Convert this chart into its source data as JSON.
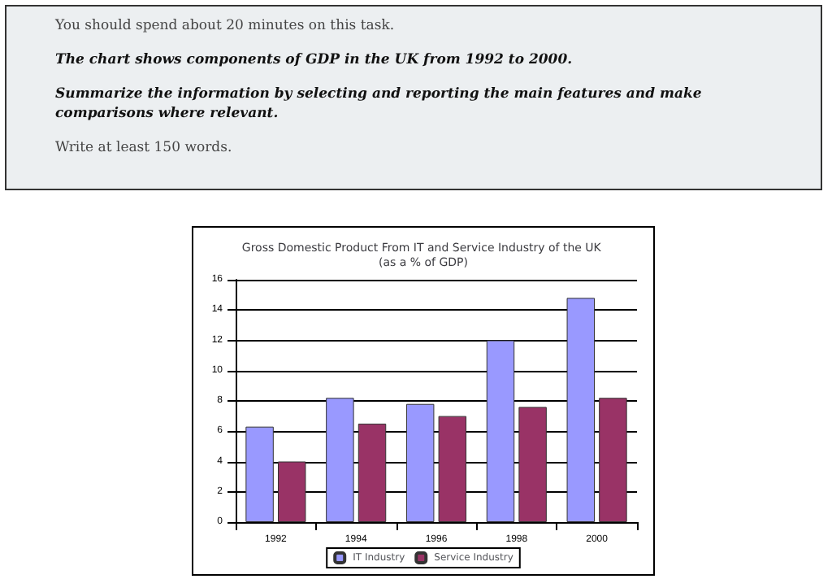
{
  "chart_data": {
    "type": "bar",
    "title": "Gross Domestic Product From IT and Service Industry of the UK (as a % of GDP)",
    "annotations": [
      "You should spend about 20 minutes on this task.",
      "The chart shows components of GDP in the UK from 1992 to 2000.",
      "Summarize the information by selecting and reporting the main features and make comparisons where relevant.",
      "Write at least 150 words."
    ],
    "categories": [
      "1992",
      "1994",
      "1996",
      "1998",
      "2000"
    ],
    "series": [
      {
        "name": "IT Industry",
        "color": "#9999ff",
        "values": [
          6.3,
          8.2,
          7.8,
          12,
          14.8
        ]
      },
      {
        "name": "Service Industry",
        "color": "#993366",
        "values": [
          4,
          6.5,
          7,
          7.6,
          8.2
        ]
      }
    ],
    "ylim": [
      0,
      16
    ],
    "yticks": [
      0,
      2,
      4,
      6,
      8,
      10,
      12,
      14,
      16
    ],
    "grid": "y",
    "legend": "bottom"
  }
}
